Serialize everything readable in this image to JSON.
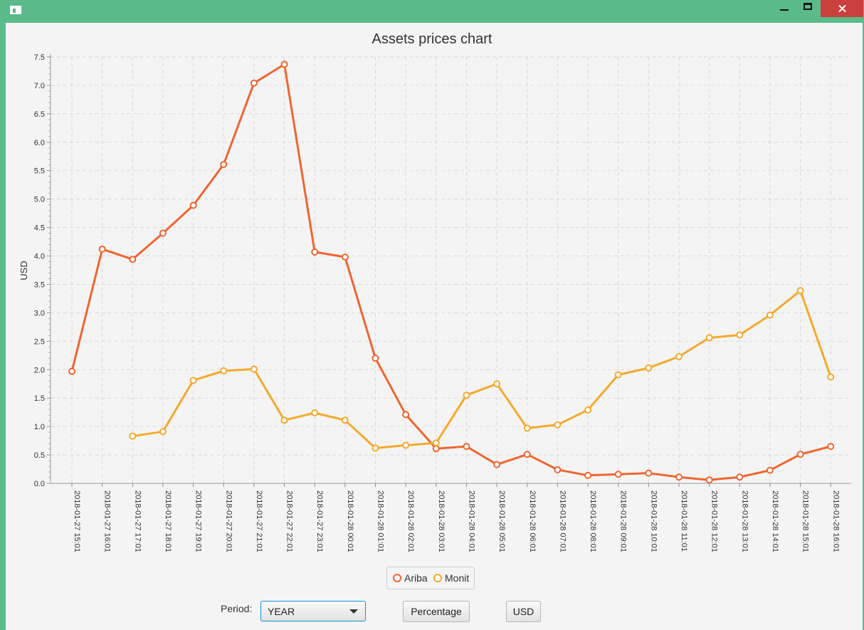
{
  "window": {
    "title": ""
  },
  "controls": {
    "period_label": "Period:",
    "period_value": "YEAR",
    "percentage_label": "Percentage",
    "usd_label": "USD"
  },
  "chart_data": {
    "type": "line",
    "title": "Assets prices chart",
    "xlabel": "",
    "ylabel": "USD",
    "ylim": [
      0,
      7.5
    ],
    "yticks": [
      "0.0",
      "0.5",
      "1.0",
      "1.5",
      "2.0",
      "2.5",
      "3.0",
      "3.5",
      "4.0",
      "4.5",
      "5.0",
      "5.5",
      "6.0",
      "6.5",
      "7.0",
      "7.5"
    ],
    "grid": true,
    "legend_position": "bottom",
    "categories": [
      "2018-01-27 15:01",
      "2018-01-27 16:01",
      "2018-01-27 17:01",
      "2018-01-27 18:01",
      "2018-01-27 19:01",
      "2018-01-27 20:01",
      "2018-01-27 21:01",
      "2018-01-27 22:01",
      "2018-01-27 23:01",
      "2018-01-28 00:01",
      "2018-01-28 01:01",
      "2018-01-28 02:01",
      "2018-01-28 03:01",
      "2018-01-28 04:01",
      "2018-01-28 05:01",
      "2018-01-28 06:01",
      "2018-01-28 07:01",
      "2018-01-28 08:01",
      "2018-01-28 09:01",
      "2018-01-28 10:01",
      "2018-01-28 11:01",
      "2018-01-28 12:01",
      "2018-01-28 13:01",
      "2018-01-28 14:01",
      "2018-01-28 15:01",
      "2018-01-28 16:01"
    ],
    "series": [
      {
        "name": "Ariba",
        "color": "#f06530",
        "values": [
          1.97,
          4.12,
          3.94,
          4.4,
          4.89,
          5.61,
          7.04,
          7.37,
          4.07,
          3.98,
          2.2,
          1.21,
          0.61,
          0.65,
          0.33,
          0.51,
          0.24,
          0.14,
          0.16,
          0.18,
          0.11,
          0.06,
          0.11,
          0.23,
          0.51,
          0.65
        ]
      },
      {
        "name": "Monit",
        "color": "#f4a92d",
        "values": [
          null,
          null,
          0.83,
          0.91,
          1.81,
          1.98,
          2.01,
          1.11,
          1.24,
          1.11,
          0.62,
          0.67,
          0.71,
          1.55,
          1.75,
          0.97,
          1.03,
          1.29,
          1.91,
          2.03,
          2.23,
          2.56,
          2.61,
          2.96,
          3.39,
          1.87
        ]
      }
    ]
  }
}
